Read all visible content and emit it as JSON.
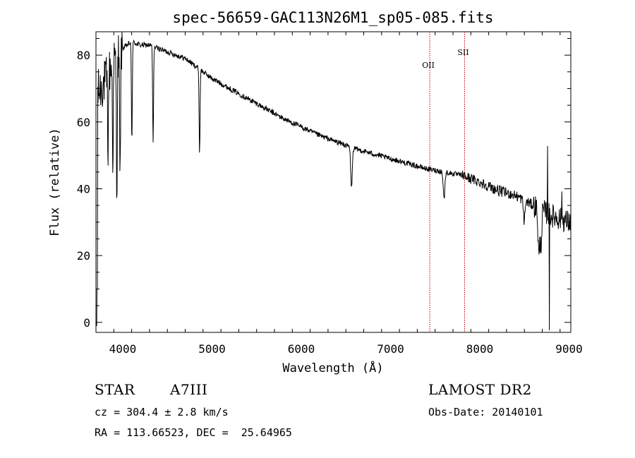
{
  "chart_data": {
    "type": "line",
    "title": "spec-56659-GAC113N26M1_sp05-085.fits",
    "xlabel": "Wavelength (Å)",
    "ylabel": "Flux (relative)",
    "xlim": [
      3700,
      9020
    ],
    "ylim": [
      -3,
      87
    ],
    "xticks": [
      4000,
      5000,
      6000,
      7000,
      8000,
      9000
    ],
    "yticks": [
      0,
      20,
      40,
      60,
      80
    ],
    "grid": false,
    "line_color": "#000000",
    "continuum": [
      [
        3700,
        68
      ],
      [
        3800,
        72
      ],
      [
        3900,
        78
      ],
      [
        4000,
        82
      ],
      [
        4100,
        84
      ],
      [
        4200,
        83
      ],
      [
        4300,
        83
      ],
      [
        4400,
        82
      ],
      [
        4500,
        81
      ],
      [
        4600,
        80
      ],
      [
        4700,
        79
      ],
      [
        4800,
        77
      ],
      [
        4900,
        75
      ],
      [
        5000,
        73
      ],
      [
        5200,
        70
      ],
      [
        5400,
        67
      ],
      [
        5600,
        64
      ],
      [
        5800,
        61
      ],
      [
        6000,
        58.5
      ],
      [
        6200,
        56
      ],
      [
        6400,
        54
      ],
      [
        6600,
        52
      ],
      [
        6800,
        50.5
      ],
      [
        7000,
        49
      ],
      [
        7200,
        47.5
      ],
      [
        7400,
        46
      ],
      [
        7600,
        45
      ],
      [
        7800,
        44
      ],
      [
        8000,
        42
      ],
      [
        8200,
        39.5
      ],
      [
        8400,
        38
      ],
      [
        8600,
        35
      ],
      [
        8800,
        32
      ],
      [
        9000,
        30
      ]
    ],
    "absorption_lines": [
      {
        "wavelength": 3835,
        "depth": 22
      },
      {
        "wavelength": 3889,
        "depth": 28
      },
      {
        "wavelength": 3934,
        "depth": 38
      },
      {
        "wavelength": 3970,
        "depth": 40
      },
      {
        "wavelength": 4102,
        "depth": 30
      },
      {
        "wavelength": 4340,
        "depth": 29
      },
      {
        "wavelength": 4861,
        "depth": 25
      },
      {
        "wavelength": 6563,
        "depth": 12
      },
      {
        "wavelength": 7600,
        "depth": 8
      },
      {
        "wavelength": 8498,
        "depth": 6
      },
      {
        "wavelength": 8662,
        "depth": 14
      },
      {
        "wavelength": 8685,
        "depth": 10
      }
    ],
    "emission_features": [
      {
        "wavelength": 8760,
        "flux": 55
      },
      {
        "wavelength": 8780,
        "flux": -3
      },
      {
        "wavelength": 8920,
        "flux": 42
      }
    ],
    "reference_lines": [
      {
        "label": "OII",
        "wavelength": 7440,
        "color": "#cc0000"
      },
      {
        "label": "SII",
        "wavelength": 7830,
        "color": "#cc0000"
      }
    ]
  },
  "info": {
    "object_type": "STAR",
    "subclass": "A7III",
    "survey": "LAMOST DR2",
    "cz": "cz = 304.4 ± 2.8 km/s",
    "obs_date": "Obs-Date: 20140101",
    "coords": "RA = 113.66523, DEC =  25.64965"
  }
}
